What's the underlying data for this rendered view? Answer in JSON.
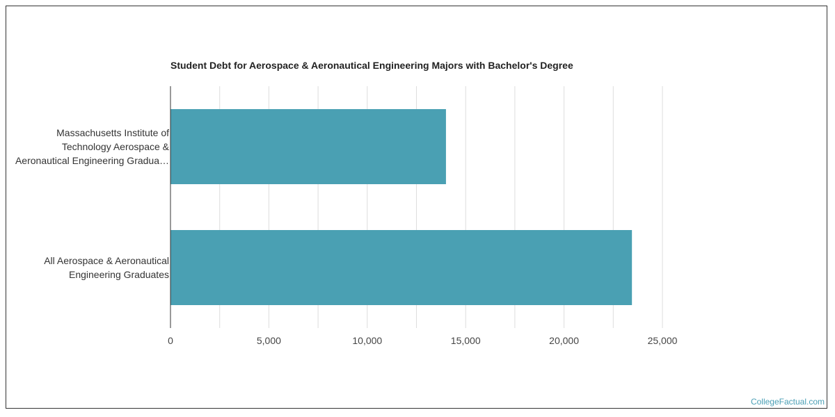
{
  "chart_data": {
    "type": "bar",
    "orientation": "horizontal",
    "title": "Student Debt for Aerospace & Aeronautical Engineering Majors with Bachelor's Degree",
    "categories": [
      [
        "Massachusetts Institute of",
        "Technology Aerospace &",
        "Aeronautical Engineering Gradua…"
      ],
      [
        "All Aerospace & Aeronautical",
        "Engineering Graduates"
      ]
    ],
    "values": [
      14000,
      23450
    ],
    "xlim": [
      0,
      25000
    ],
    "xticks": [
      0,
      5000,
      10000,
      15000,
      20000,
      25000
    ],
    "xtick_labels": [
      "0",
      "5,000",
      "10,000",
      "15,000",
      "20,000",
      "25,000"
    ],
    "grid": true,
    "bar_color": "#4aa0b3",
    "xlabel": "",
    "ylabel": ""
  },
  "watermark": "CollegeFactual.com"
}
